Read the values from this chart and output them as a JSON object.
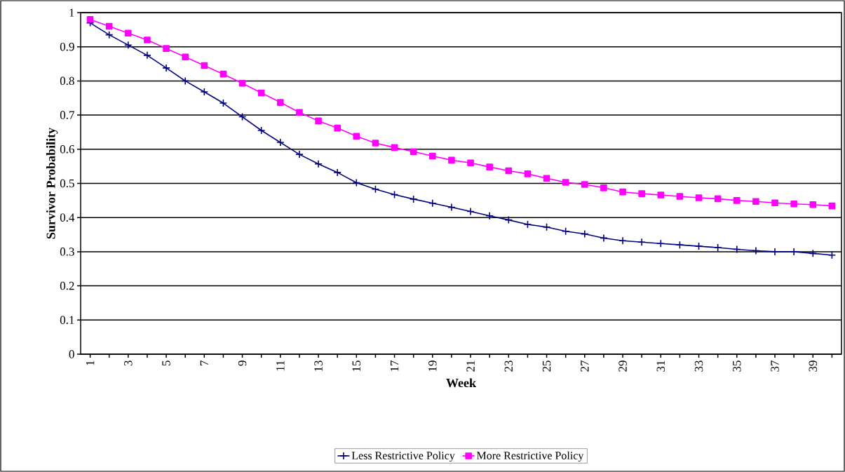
{
  "chart_data": {
    "type": "line",
    "xlabel": "Week",
    "ylabel": "Survivor Probability",
    "categories": [
      "1",
      null,
      "3",
      null,
      "5",
      null,
      "7",
      null,
      "9",
      null,
      "11",
      null,
      "13",
      null,
      "15",
      null,
      "17",
      null,
      "19",
      null,
      "21",
      null,
      "23",
      null,
      "25",
      null,
      "27",
      null,
      "29",
      null,
      "31",
      null,
      "33",
      null,
      "35",
      null,
      "37",
      null,
      "39",
      null
    ],
    "ylim": [
      0,
      1
    ],
    "yticks": [
      0,
      0.1,
      0.2,
      0.3,
      0.4,
      0.5,
      0.6,
      0.7,
      0.8,
      0.9,
      1
    ],
    "grid": "y",
    "legend": "bottom",
    "series": [
      {
        "name": "Less Restrictive Policy",
        "color": "#000080",
        "marker": "cross",
        "values": [
          0.97,
          0.935,
          0.905,
          0.875,
          0.838,
          0.8,
          0.768,
          0.735,
          0.695,
          0.655,
          0.62,
          0.585,
          0.557,
          0.532,
          0.502,
          0.483,
          0.467,
          0.454,
          0.442,
          0.43,
          0.418,
          0.405,
          0.393,
          0.38,
          0.372,
          0.36,
          0.352,
          0.34,
          0.332,
          0.328,
          0.324,
          0.32,
          0.316,
          0.312,
          0.307,
          0.303,
          0.3,
          0.3,
          0.295,
          0.29
        ]
      },
      {
        "name": "More Restrictive Policy",
        "color": "#ff00ff",
        "marker": "square",
        "values": [
          0.98,
          0.96,
          0.94,
          0.92,
          0.895,
          0.87,
          0.845,
          0.82,
          0.793,
          0.765,
          0.737,
          0.708,
          0.683,
          0.662,
          0.638,
          0.618,
          0.605,
          0.593,
          0.58,
          0.568,
          0.56,
          0.548,
          0.537,
          0.528,
          0.515,
          0.503,
          0.497,
          0.487,
          0.475,
          0.47,
          0.466,
          0.462,
          0.458,
          0.455,
          0.45,
          0.447,
          0.443,
          0.44,
          0.438,
          0.434
        ]
      }
    ]
  }
}
